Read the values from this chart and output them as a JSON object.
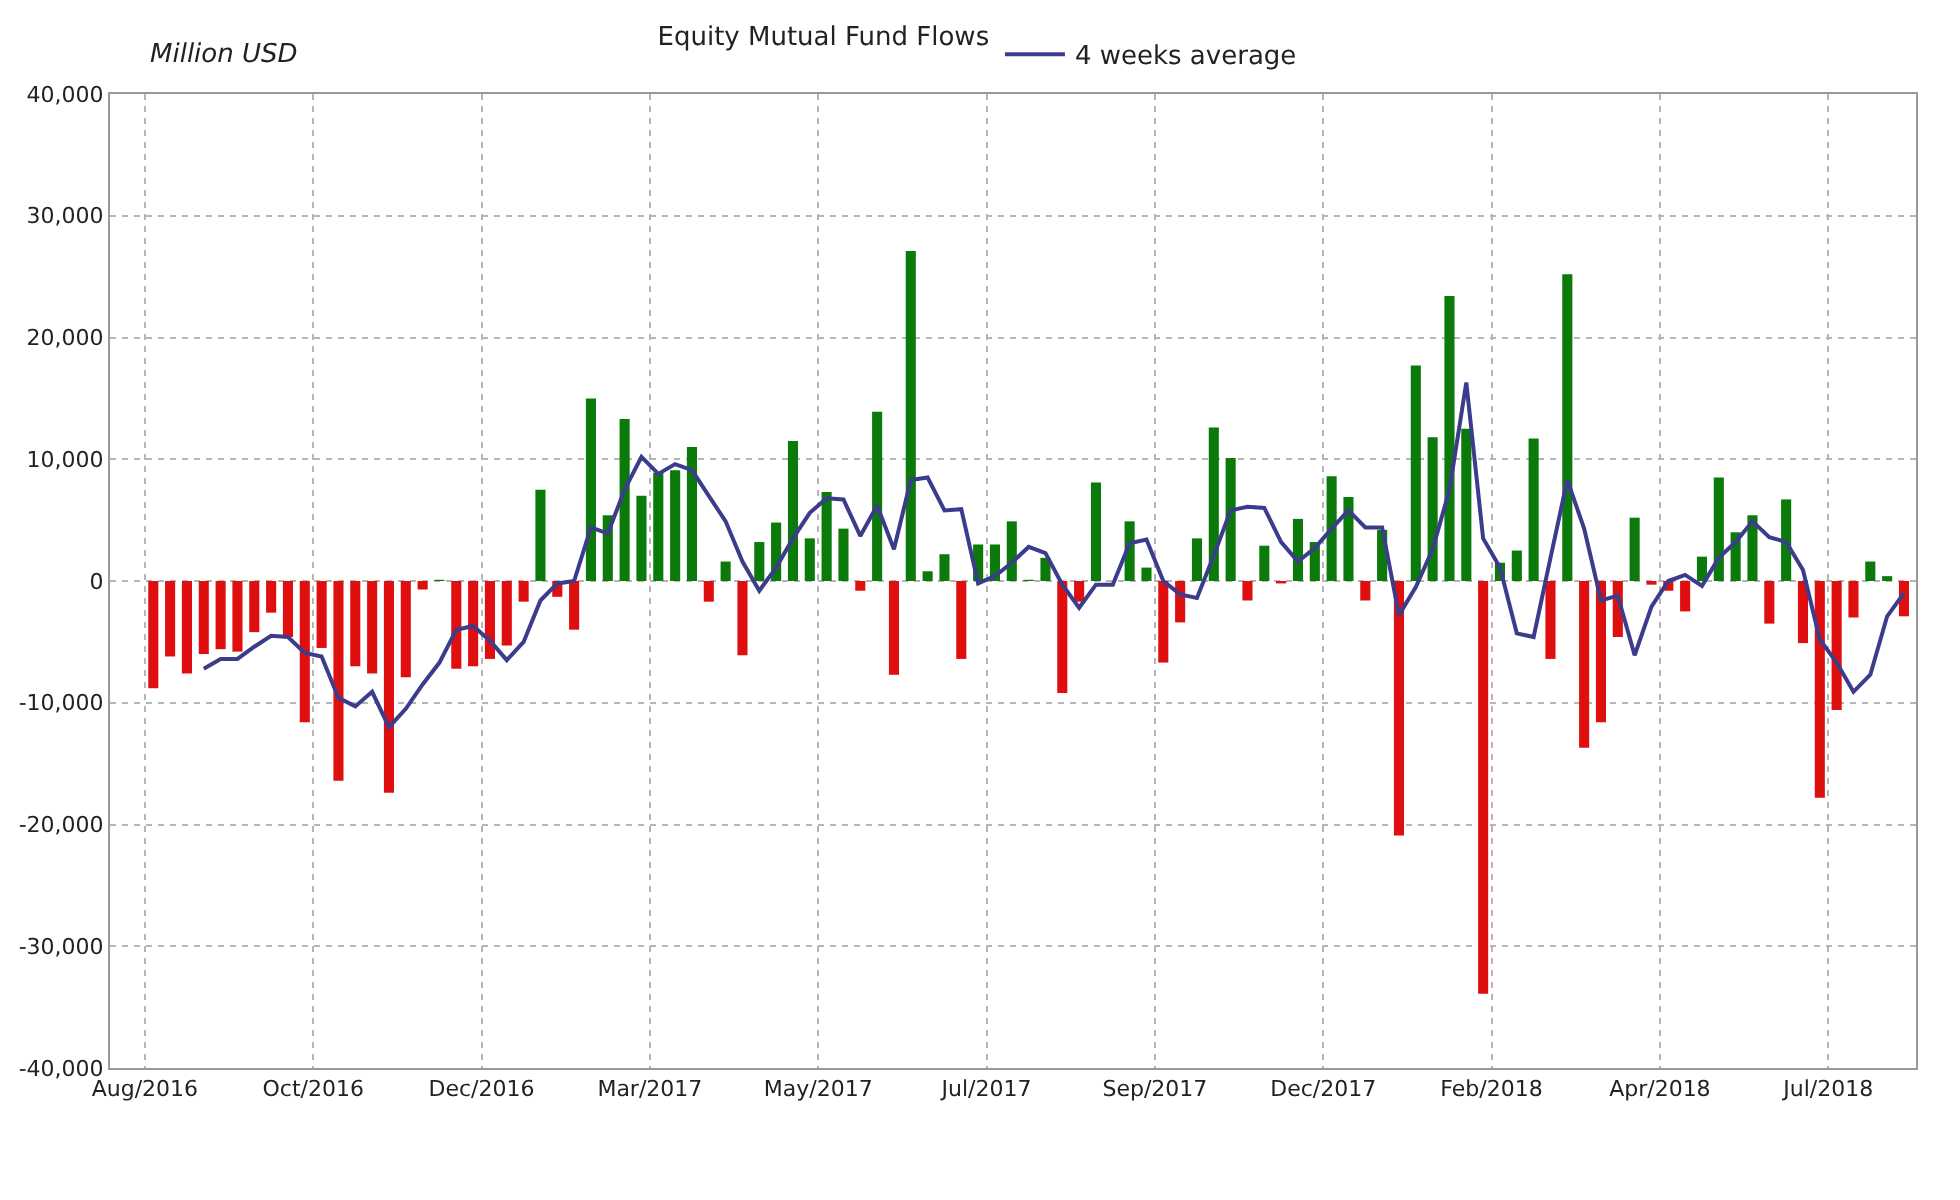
{
  "chart_data": {
    "type": "bar",
    "title": "Equity Mutual Fund Flows",
    "ylabel": "Million USD",
    "x": [
      "2016-08-10",
      "2016-08-17",
      "2016-08-24",
      "2016-08-31",
      "2016-09-07",
      "2016-09-14",
      "2016-09-21",
      "2016-09-28",
      "2016-10-05",
      "2016-10-12",
      "2016-10-19",
      "2016-10-26",
      "2016-11-02",
      "2016-11-09",
      "2016-11-16",
      "2016-11-23",
      "2016-11-30",
      "2016-12-07",
      "2016-12-14",
      "2016-12-21",
      "2016-12-28",
      "2017-01-04",
      "2017-01-11",
      "2017-01-18",
      "2017-01-25",
      "2017-02-01",
      "2017-02-08",
      "2017-02-15",
      "2017-02-22",
      "2017-03-01",
      "2017-03-08",
      "2017-03-15",
      "2017-03-22",
      "2017-03-29",
      "2017-04-05",
      "2017-04-12",
      "2017-04-19",
      "2017-04-26",
      "2017-05-03",
      "2017-05-10",
      "2017-05-17",
      "2017-05-24",
      "2017-05-31",
      "2017-06-07",
      "2017-06-14",
      "2017-06-21",
      "2017-06-28",
      "2017-07-05",
      "2017-07-12",
      "2017-07-19",
      "2017-07-26",
      "2017-08-02",
      "2017-08-09",
      "2017-08-16",
      "2017-08-23",
      "2017-08-30",
      "2017-09-06",
      "2017-09-13",
      "2017-09-20",
      "2017-09-27",
      "2017-10-04",
      "2017-10-11",
      "2017-10-18",
      "2017-10-25",
      "2017-11-01",
      "2017-11-08",
      "2017-11-15",
      "2017-11-22",
      "2017-11-29",
      "2017-12-06",
      "2017-12-13",
      "2017-12-20",
      "2017-12-27",
      "2018-01-03",
      "2018-01-10",
      "2018-01-17",
      "2018-01-24",
      "2018-01-31",
      "2018-02-07",
      "2018-02-14",
      "2018-02-21",
      "2018-02-28",
      "2018-03-07",
      "2018-03-14",
      "2018-03-21",
      "2018-03-28",
      "2018-04-04",
      "2018-04-11",
      "2018-04-18",
      "2018-04-25",
      "2018-05-02",
      "2018-05-09",
      "2018-05-16",
      "2018-05-23",
      "2018-05-30",
      "2018-06-06",
      "2018-06-13",
      "2018-06-20",
      "2018-06-27",
      "2018-07-04",
      "2018-07-11",
      "2018-07-18",
      "2018-07-25",
      "2018-08-01",
      "2018-08-08"
    ],
    "series": [
      {
        "colors": [
          "#e00f0f",
          "#e00f0f",
          "#e00f0f",
          "#e00f0f",
          "#e00f0f",
          "#e00f0f",
          "#e00f0f",
          "#e00f0f",
          "#e00f0f",
          "#e00f0f",
          "#e00f0f",
          "#e00f0f",
          "#e00f0f",
          "#e00f0f",
          "#e00f0f",
          "#e00f0f",
          "#e00f0f",
          "#0b7a0b",
          "#e00f0f",
          "#e00f0f",
          "#e00f0f",
          "#e00f0f",
          "#e00f0f",
          "#0b7a0b",
          "#e00f0f",
          "#e00f0f",
          "#0b7a0b",
          "#0b7a0b",
          "#0b7a0b",
          "#0b7a0b",
          "#0b7a0b",
          "#0b7a0b",
          "#0b7a0b",
          "#e00f0f",
          "#0b7a0b",
          "#e00f0f",
          "#0b7a0b",
          "#0b7a0b",
          "#0b7a0b",
          "#0b7a0b",
          "#0b7a0b",
          "#0b7a0b",
          "#e00f0f",
          "#0b7a0b",
          "#e00f0f",
          "#0b7a0b",
          "#0b7a0b",
          "#0b7a0b",
          "#e00f0f",
          "#0b7a0b",
          "#0b7a0b",
          "#0b7a0b",
          "#0b7a0b",
          "#0b7a0b",
          "#e00f0f",
          "#e00f0f",
          "#0b7a0b",
          "#e00f0f",
          "#0b7a0b",
          "#0b7a0b",
          "#e00f0f",
          "#e00f0f",
          "#0b7a0b",
          "#0b7a0b",
          "#0b7a0b",
          "#e00f0f",
          "#0b7a0b",
          "#e00f0f",
          "#0b7a0b",
          "#0b7a0b",
          "#0b7a0b",
          "#0b7a0b",
          "#e00f0f",
          "#0b7a0b",
          "#e00f0f",
          "#0b7a0b",
          "#0b7a0b",
          "#0b7a0b",
          "#0b7a0b",
          "#e00f0f",
          "#0b7a0b",
          "#0b7a0b",
          "#0b7a0b",
          "#e00f0f",
          "#0b7a0b",
          "#e00f0f",
          "#e00f0f",
          "#e00f0f",
          "#0b7a0b",
          "#e00f0f",
          "#e00f0f",
          "#e00f0f",
          "#0b7a0b",
          "#0b7a0b",
          "#0b7a0b",
          "#0b7a0b",
          "#e00f0f",
          "#0b7a0b",
          "#e00f0f",
          "#e00f0f",
          "#e00f0f",
          "#e00f0f",
          "#0b7a0b",
          "#0b7a0b",
          "#e00f0f"
        ],
        "values": [
          -8800,
          -6200,
          -7600,
          -6000,
          -5600,
          -5800,
          -4200,
          -2600,
          -4600,
          -11600,
          -5500,
          -16400,
          -7000,
          -7600,
          -17400,
          -7900,
          -700,
          100,
          -7200,
          -7000,
          -6400,
          -5300,
          -1700,
          7500,
          -1300,
          -4000,
          15000,
          5400,
          13300,
          7000,
          8900,
          9100,
          11000,
          -1700,
          1600,
          -6100,
          3200,
          4800,
          11500,
          3500,
          7300,
          4300,
          -800,
          13900,
          -7700,
          27100,
          800,
          2200,
          -6400,
          3000,
          3000,
          4900,
          100,
          1900,
          -9200,
          -1700,
          8100,
          null,
          4900,
          1100,
          -6700,
          -3400,
          3500,
          12600,
          10100,
          -1600,
          2900,
          -200,
          5100,
          3200,
          8600,
          6900,
          -1600,
          4200,
          -20900,
          17700,
          11800,
          23400,
          12500,
          -33900,
          1500,
          2500,
          11700,
          -6400,
          25200,
          -13700,
          -11600,
          -4600,
          5200,
          -300,
          -800,
          -2500,
          2000,
          8500,
          4000,
          5400,
          -3500,
          6700,
          -5100,
          -17800,
          -10600,
          -3000,
          1600,
          400,
          -2900
        ]
      },
      {
        "type": "line",
        "name": "4 weeks average",
        "color": "#3c3c8c",
        "values": [
          null,
          null,
          null,
          -7200,
          -6400,
          -6400,
          -5400,
          -4500,
          -4600,
          -5900,
          -6200,
          -9600,
          -10300,
          -9100,
          -12000,
          -10500,
          -8500,
          -6700,
          -4000,
          -3700,
          -4900,
          -6500,
          -5000,
          -1600,
          -200,
          0,
          4400,
          3900,
          7500,
          10200,
          8800,
          9600,
          9100,
          7000,
          4900,
          1600,
          -800,
          1100,
          3500,
          5600,
          6800,
          6700,
          3700,
          6200,
          2600,
          8300,
          8500,
          5800,
          5900,
          -200,
          400,
          1500,
          2800,
          2300,
          -300,
          -2200,
          -300,
          -300,
          3100,
          3400,
          0,
          -1100,
          -1400,
          2100,
          5800,
          6100,
          6000,
          3200,
          1600,
          2700,
          4300,
          5800,
          4400,
          4400,
          -2800,
          -500,
          2600,
          7500,
          16300,
          3500,
          1100,
          -4300,
          -4600,
          1900,
          8300,
          4300,
          -1600,
          -1200,
          -6100,
          -2100,
          0,
          500,
          -400,
          1900,
          3200,
          4900,
          3600,
          3200,
          900,
          -4800,
          -6700,
          -9100,
          -7700,
          -2900,
          -1000
        ]
      }
    ],
    "xlim": [
      "2016-07-23",
      "2018-08-13"
    ],
    "xticks": [
      {
        "value": "2016-08-06T12:00",
        "label": "Aug/2016"
      },
      {
        "value": "2016-10-15T12:00",
        "label": "Oct/2016"
      },
      {
        "value": "2016-12-24T12:00",
        "label": "Dec/2016"
      },
      {
        "value": "2017-03-04T12:00",
        "label": "Mar/2017"
      },
      {
        "value": "2017-05-13T12:00",
        "label": "May/2017"
      },
      {
        "value": "2017-07-22T12:00",
        "label": "Jul/2017"
      },
      {
        "value": "2017-09-30T12:00",
        "label": "Sep/2017"
      },
      {
        "value": "2017-12-09T12:00",
        "label": "Dec/2017"
      },
      {
        "value": "2018-02-17T12:00",
        "label": "Feb/2018"
      },
      {
        "value": "2018-04-28T12:00",
        "label": "Apr/2018"
      },
      {
        "value": "2018-07-07T12:00",
        "label": "Jul/2018"
      }
    ],
    "ylim": [
      -40000,
      40000
    ],
    "yticks": [
      {
        "value": -40000,
        "label": "-40,000"
      },
      {
        "value": -30000,
        "label": "-30,000"
      },
      {
        "value": -20000,
        "label": "-20,000"
      },
      {
        "value": -10000,
        "label": "-10,000"
      },
      0,
      {
        "value": 10000,
        "label": "10,000"
      },
      {
        "value": 20000,
        "label": "20,000"
      },
      {
        "value": 30000,
        "label": "30,000"
      },
      {
        "value": 40000,
        "label": "40,000"
      }
    ],
    "grid": true,
    "legend": "top",
    "marker": "none",
    "line_style": "solid"
  }
}
